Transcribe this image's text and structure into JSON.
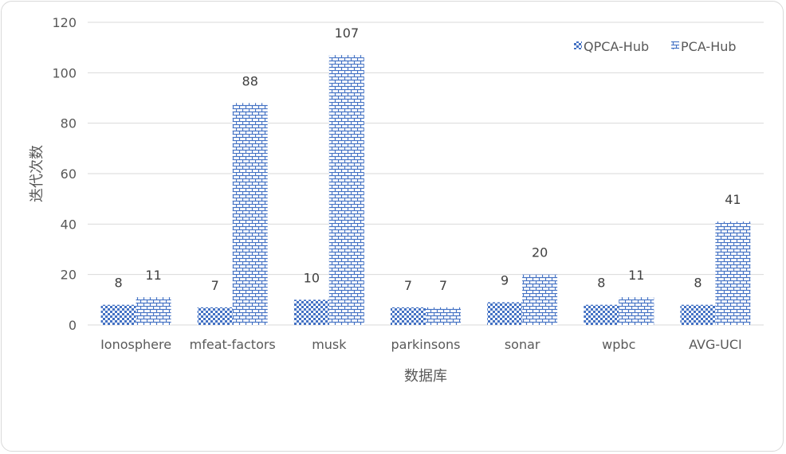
{
  "chart_data": {
    "type": "bar",
    "categories": [
      "Ionosphere",
      "mfeat-factors",
      "musk",
      "parkinsons",
      "sonar",
      "wpbc",
      "AVG-UCI"
    ],
    "series": [
      {
        "name": "QPCA-Hub",
        "values": [
          8,
          7,
          10,
          7,
          9,
          8,
          8
        ],
        "color": "#4472c4",
        "pattern": "checker"
      },
      {
        "name": "PCA-Hub",
        "values": [
          11,
          88,
          107,
          7,
          20,
          11,
          41
        ],
        "color": "#4472c4",
        "pattern": "brick"
      }
    ],
    "data_labels": true,
    "xlabel": "数据库",
    "ylabel": "迭代次数",
    "ylim": [
      0,
      120
    ],
    "yticks": [
      0,
      20,
      40,
      60,
      80,
      100,
      120
    ],
    "grid": true,
    "legend_position": "top-right"
  }
}
